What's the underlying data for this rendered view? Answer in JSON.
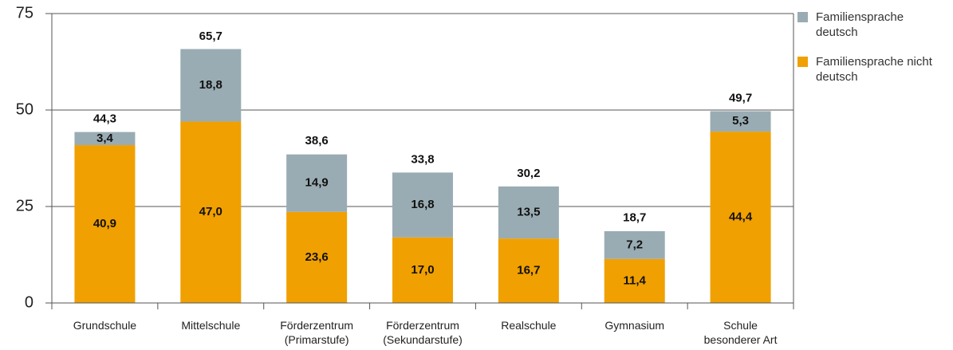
{
  "chart_data": {
    "type": "stacked_bar",
    "categories": [
      "Grundschule",
      "Mittelschule",
      "Förderzentrum\n(Primarstufe)",
      "Förderzentrum\n(Sekundarstufe)",
      "Realschule",
      "Gymnasium",
      "Schule\nbesonderer Art"
    ],
    "series": [
      {
        "name": "Familiensprache nicht deutsch",
        "color": "#f0a000",
        "values": [
          40.9,
          47.0,
          23.6,
          17.0,
          16.7,
          11.4,
          44.4
        ],
        "value_labels": [
          "40,9",
          "47,0",
          "23,6",
          "17,0",
          "16,7",
          "11,4",
          "44,4"
        ]
      },
      {
        "name": "Familiensprache deutsch",
        "color": "#9aacb3",
        "values": [
          3.4,
          18.8,
          14.9,
          16.8,
          13.5,
          7.2,
          5.3
        ],
        "value_labels": [
          "3,4",
          "18,8",
          "14,9",
          "16,8",
          "13,5",
          "7,2",
          "5,3"
        ]
      }
    ],
    "totals": [
      44.3,
      65.7,
      38.6,
      33.8,
      30.2,
      18.7,
      49.7
    ],
    "total_labels": [
      "44,3",
      "65,7",
      "38,6",
      "33,8",
      "30,2",
      "18,7",
      "49,7"
    ],
    "ylim": [
      0,
      75
    ],
    "yticks": [
      0,
      25,
      50,
      75
    ],
    "grid": true,
    "legend": "right"
  }
}
